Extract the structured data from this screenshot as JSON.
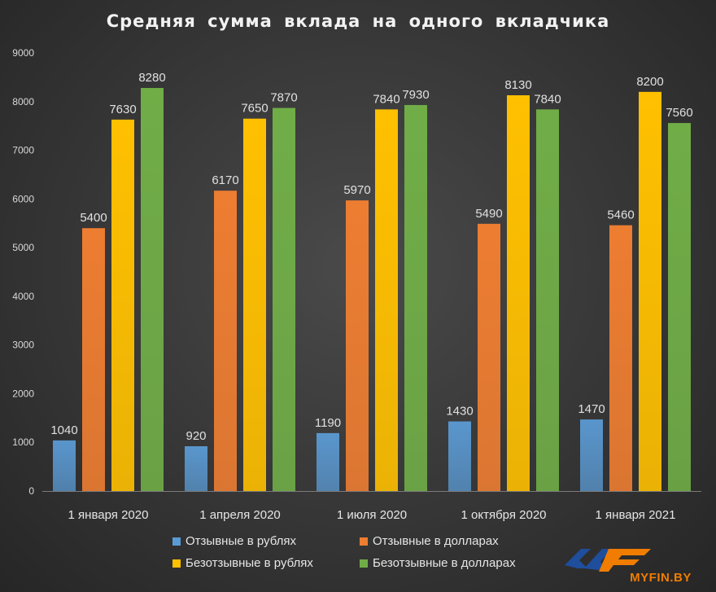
{
  "chart_data": {
    "type": "bar",
    "title": "Средняя сумма вклада на одного вкладчика",
    "categories": [
      "1 января 2020",
      "1 апреля 2020",
      "1 июля 2020",
      "1 октября 2020",
      "1 января 2021"
    ],
    "series": [
      {
        "name": "Отзывные в рублях",
        "values": [
          1040,
          920,
          1190,
          1430,
          1470
        ],
        "color": "#5b9bd5"
      },
      {
        "name": "Отзывные в долларах",
        "values": [
          5400,
          6170,
          5970,
          5490,
          5460
        ],
        "color": "#ed7d31"
      },
      {
        "name": "Безотзывные в рублях",
        "values": [
          7630,
          7650,
          7840,
          8130,
          8200
        ],
        "color": "#ffc000"
      },
      {
        "name": "Безотзывные в долларах",
        "values": [
          8280,
          7870,
          7930,
          7840,
          7560
        ],
        "color": "#70ad47"
      }
    ],
    "ylim": [
      0,
      9000
    ],
    "yticks": [
      "0",
      "1000",
      "2000",
      "3000",
      "4000",
      "5000",
      "6000",
      "7000",
      "8000",
      "9000"
    ],
    "grid": false,
    "legend_position": "bottom"
  },
  "logo": {
    "text": "MYFIN.BY"
  }
}
